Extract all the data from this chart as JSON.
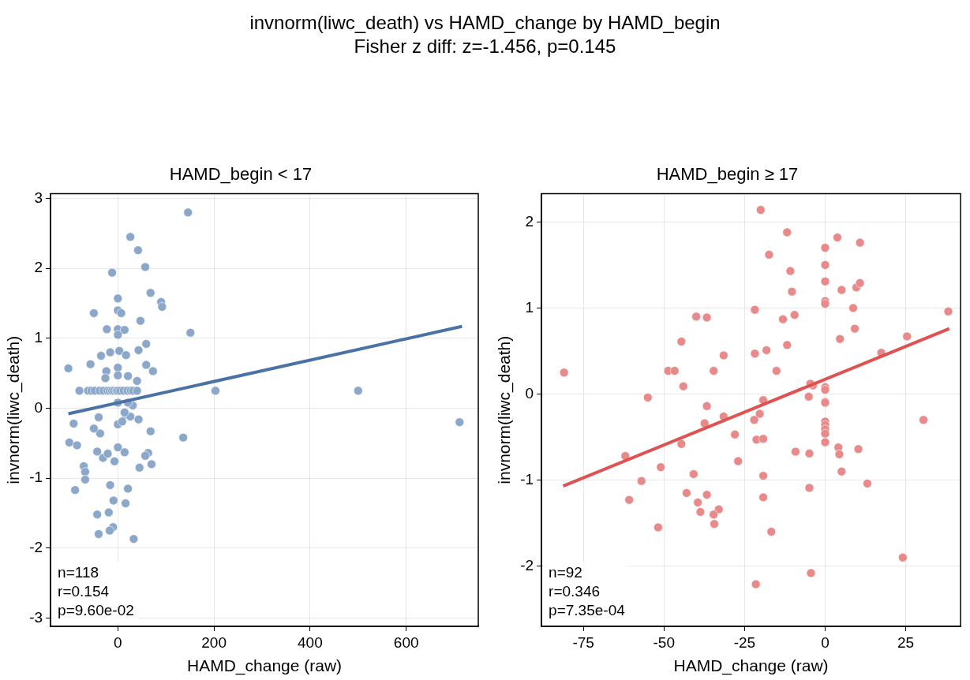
{
  "chart_data": [
    {
      "type": "other",
      "title": "invnorm(liwc_death) vs HAMD_change by HAMD_begin",
      "subtitle": "Fisher z diff: z=-1.456, p=0.145"
    },
    {
      "type": "scatter",
      "title": "HAMD_begin < 17",
      "xlabel": "HAMD_change (raw)",
      "ylabel": "invnorm(liwc_death)",
      "xlim": [
        -140,
        750
      ],
      "ylim": [
        -3.12,
        3.07
      ],
      "xticks": [
        0,
        200,
        400,
        600
      ],
      "yticks": [
        -3,
        -2,
        -1,
        0,
        1,
        2,
        3
      ],
      "grid": true,
      "legend": false,
      "annotations": [
        "n=118",
        "r=0.154",
        "p=9.60e-02"
      ],
      "series": [
        {
          "type": "scatter",
          "marker": "circle",
          "color": "#8ba7c9",
          "x": [
            146,
            26,
            42,
            -12,
            57,
            68,
            0,
            90,
            92,
            -50,
            0,
            7,
            47,
            151,
            -23,
            0,
            14,
            59,
            43,
            0,
            -35,
            -16,
            3,
            17,
            -103,
            -57,
            59,
            73,
            -24,
            0,
            0,
            21,
            40,
            -26,
            -80,
            -62,
            -55,
            -48,
            -38,
            -30,
            -22,
            -17,
            -12,
            -8,
            -3,
            0,
            5,
            12,
            20,
            27,
            32,
            40,
            203,
            500,
            136,
            711,
            -92,
            -40,
            -37,
            -50,
            0,
            16,
            31,
            26,
            43,
            68,
            63,
            -101,
            -85,
            -43,
            -31,
            -21,
            -7,
            0,
            14,
            57,
            70,
            45,
            -71,
            -68,
            -68,
            -89,
            -16,
            21,
            -9,
            16,
            -43,
            -19,
            -10,
            -17,
            -40,
            33,
            0,
            21,
            14,
            9
          ],
          "values": [
            2.8,
            2.45,
            2.26,
            1.94,
            2.02,
            1.65,
            1.57,
            1.52,
            1.45,
            1.36,
            1.4,
            1.36,
            1.25,
            1.08,
            1.13,
            1.13,
            1.12,
            0.92,
            0.83,
            1.05,
            0.75,
            0.8,
            0.82,
            0.76,
            0.57,
            0.63,
            0.62,
            0.53,
            0.53,
            0.58,
            0.47,
            0.46,
            0.39,
            0.43,
            0.25,
            0.25,
            0.25,
            0.25,
            0.25,
            0.25,
            0.25,
            0.25,
            0.25,
            0.25,
            0.25,
            0.25,
            0.25,
            0.25,
            0.25,
            0.25,
            0.25,
            0.25,
            0.25,
            0.25,
            -0.42,
            -0.2,
            -0.22,
            -0.13,
            -0.36,
            -0.29,
            -0.23,
            -0.09,
            0.04,
            -0.12,
            -0.16,
            -0.33,
            -0.64,
            -0.49,
            -0.53,
            -0.62,
            -0.71,
            -0.65,
            -0.76,
            -0.56,
            -0.63,
            -0.68,
            -0.8,
            -0.85,
            -0.83,
            -0.91,
            -1.02,
            -1.17,
            -1.1,
            -1.15,
            -1.32,
            -1.36,
            -1.52,
            -1.49,
            -1.7,
            -1.75,
            -1.8,
            -1.87,
            0.08,
            0.08,
            -0.06,
            -0.19
          ]
        },
        {
          "type": "line",
          "color": "#4a72a6",
          "x": [
            -103,
            716
          ],
          "values": [
            -0.08,
            1.17
          ]
        }
      ]
    },
    {
      "type": "scatter",
      "title": "HAMD_begin ≥ 17",
      "xlabel": "HAMD_change (raw)",
      "ylabel": "invnorm(liwc_death)",
      "xlim": [
        -88,
        42
      ],
      "ylim": [
        -2.7,
        2.33
      ],
      "xticks": [
        -75,
        -50,
        -25,
        0,
        25
      ],
      "yticks": [
        -2,
        -1,
        0,
        1,
        2
      ],
      "grid": true,
      "legend": false,
      "annotations": [
        "n=92",
        "r=0.346",
        "p=7.35e-04"
      ],
      "series": [
        {
          "type": "scatter",
          "marker": "circle",
          "color": "#e8898a",
          "x": [
            -81,
            -48.7,
            -46.7,
            -44.6,
            -40,
            -36.7,
            -31.5,
            -34.6,
            -44,
            -55,
            -36.7,
            -31.5,
            -37.4,
            -28,
            -44.6,
            -27,
            -62,
            -51,
            -40.8,
            -57,
            -60.8,
            -43,
            -36.7,
            -39.5,
            -33,
            -38.7,
            -34.6,
            -34.4,
            -51.8,
            -20,
            -11.8,
            -17.4,
            3.8,
            10.8,
            0,
            0,
            0,
            -10.8,
            -10.3,
            5.1,
            9.7,
            10.8,
            0,
            0,
            -21.8,
            8.7,
            -13.1,
            -9.5,
            9.2,
            4.6,
            -11.8,
            -21.8,
            -18.2,
            25.4,
            17.4,
            38.2,
            -15.1,
            -3.8,
            -4.6,
            0,
            0,
            -5.1,
            0,
            0,
            -19.2,
            -20.3,
            -22,
            0,
            0,
            0,
            0,
            0,
            4.1,
            4.4,
            10.3,
            30.5,
            -21.3,
            -19.2,
            -9.2,
            -4.9,
            5.1,
            13.1,
            -19.2,
            -4.9,
            -19.2,
            -16.7,
            24.1,
            -4.4,
            -21.5
          ],
          "values": [
            0.25,
            0.27,
            0.27,
            0.61,
            0.9,
            0.89,
            0.45,
            0.27,
            0.09,
            -0.04,
            -0.14,
            -0.26,
            -0.34,
            -0.47,
            -0.58,
            -0.78,
            -0.72,
            -0.85,
            -0.93,
            -1.01,
            -1.23,
            -1.15,
            -1.17,
            -1.26,
            -1.34,
            -1.37,
            -1.4,
            -1.51,
            -1.55,
            2.14,
            1.88,
            1.62,
            1.82,
            1.76,
            1.7,
            1.5,
            1.31,
            1.43,
            1.19,
            1.21,
            1.24,
            1.29,
            1.08,
            1.05,
            0.98,
            1.0,
            0.87,
            0.92,
            0.76,
            0.64,
            0.57,
            0.47,
            0.51,
            0.67,
            0.48,
            0.96,
            0.27,
            0.1,
            0.12,
            0.08,
            0.05,
            -0.03,
            -0.09,
            -0.1,
            -0.07,
            -0.23,
            -0.3,
            -0.32,
            -0.36,
            -0.41,
            -0.46,
            -0.56,
            -0.62,
            -0.7,
            -0.64,
            -0.3,
            -0.53,
            -0.52,
            -0.67,
            -0.69,
            -0.9,
            -1.04,
            -0.95,
            -1.09,
            -1.2,
            -1.6,
            -1.9,
            -2.08,
            -2.21
          ]
        },
        {
          "type": "line",
          "color": "#e05252",
          "x": [
            -81.3,
            38.5
          ],
          "values": [
            -1.07,
            0.76
          ]
        }
      ]
    }
  ]
}
